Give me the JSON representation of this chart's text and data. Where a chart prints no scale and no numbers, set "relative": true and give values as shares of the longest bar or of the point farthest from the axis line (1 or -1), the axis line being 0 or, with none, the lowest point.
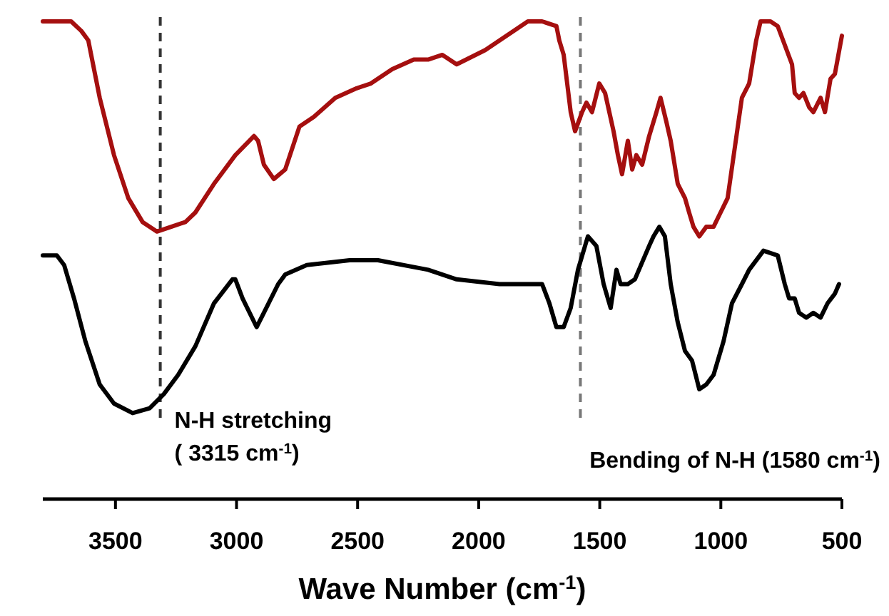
{
  "chart_data": {
    "type": "line",
    "relative": true,
    "xlabel": "Wave Number (cm$^{-1}$)",
    "xlim": [
      3800,
      500
    ],
    "xticks": [
      3500,
      3000,
      2500,
      2000,
      1500,
      1000,
      500
    ],
    "line_style": "solid",
    "series": [
      {
        "color": "#a50f0f",
        "x": [
          3800,
          3683,
          3641,
          3612,
          3565,
          3506,
          3447,
          3388,
          3329,
          3270,
          3211,
          3170,
          3093,
          3005,
          2928,
          2911,
          2887,
          2846,
          2799,
          2740,
          2681,
          2592,
          2504,
          2445,
          2357,
          2268,
          2209,
          2150,
          2091,
          1973,
          1856,
          1797,
          1738,
          1679,
          1667,
          1649,
          1620,
          1602,
          1573,
          1555,
          1532,
          1502,
          1478,
          1443,
          1425,
          1408,
          1384,
          1366,
          1349,
          1325,
          1296,
          1266,
          1249,
          1225,
          1207,
          1178,
          1148,
          1131,
          1113,
          1089,
          1060,
          1030,
          1001,
          972,
          913,
          883,
          854,
          836,
          795,
          765,
          706,
          695,
          677,
          659,
          635,
          618,
          588,
          570,
          547,
          529,
          500
        ],
        "values": [
          1,
          1,
          0.98,
          0.96,
          0.84,
          0.72,
          0.63,
          0.58,
          0.56,
          0.57,
          0.58,
          0.6,
          0.66,
          0.72,
          0.76,
          0.75,
          0.7,
          0.67,
          0.69,
          0.78,
          0.8,
          0.84,
          0.86,
          0.87,
          0.9,
          0.92,
          0.92,
          0.93,
          0.91,
          0.94,
          0.98,
          1,
          1,
          0.99,
          0.96,
          0.93,
          0.81,
          0.77,
          0.81,
          0.83,
          0.81,
          0.87,
          0.85,
          0.77,
          0.72,
          0.68,
          0.75,
          0.69,
          0.72,
          0.7,
          0.76,
          0.81,
          0.84,
          0.79,
          0.75,
          0.66,
          0.63,
          0.6,
          0.57,
          0.55,
          0.57,
          0.57,
          0.6,
          0.63,
          0.84,
          0.87,
          0.96,
          1,
          1,
          0.99,
          0.91,
          0.85,
          0.84,
          0.85,
          0.82,
          0.81,
          0.84,
          0.81,
          0.88,
          0.89,
          0.97
        ]
      },
      {
        "color": "#000000",
        "x": [
          3800,
          3742,
          3712,
          3671,
          3624,
          3565,
          3506,
          3429,
          3359,
          3300,
          3241,
          3170,
          3093,
          3017,
          3005,
          2975,
          2917,
          2887,
          2828,
          2799,
          2710,
          2533,
          2416,
          2209,
          2091,
          1914,
          1767,
          1738,
          1708,
          1679,
          1649,
          1620,
          1590,
          1549,
          1514,
          1484,
          1455,
          1431,
          1414,
          1384,
          1355,
          1313,
          1296,
          1278,
          1254,
          1231,
          1207,
          1178,
          1148,
          1119,
          1089,
          1060,
          1030,
          989,
          954,
          913,
          883,
          824,
          765,
          736,
          718,
          695,
          677,
          647,
          618,
          588,
          559,
          529,
          512
        ],
        "values": [
          0.51,
          0.51,
          0.49,
          0.42,
          0.33,
          0.24,
          0.2,
          0.18,
          0.19,
          0.22,
          0.26,
          0.32,
          0.41,
          0.46,
          0.46,
          0.42,
          0.36,
          0.39,
          0.45,
          0.47,
          0.49,
          0.5,
          0.5,
          0.48,
          0.46,
          0.45,
          0.45,
          0.45,
          0.41,
          0.36,
          0.36,
          0.4,
          0.48,
          0.55,
          0.53,
          0.45,
          0.4,
          0.48,
          0.45,
          0.45,
          0.46,
          0.51,
          0.53,
          0.55,
          0.57,
          0.55,
          0.45,
          0.37,
          0.31,
          0.29,
          0.23,
          0.24,
          0.26,
          0.33,
          0.41,
          0.45,
          0.48,
          0.52,
          0.51,
          0.45,
          0.42,
          0.42,
          0.39,
          0.38,
          0.39,
          0.38,
          0.41,
          0.43,
          0.45
        ]
      }
    ],
    "ref_lines": [
      {
        "axis": "x",
        "value": 3315,
        "label": "N-H stretching\n( 3315 cm$^{-1}$)",
        "color": "#333333",
        "line_style": "dashed"
      },
      {
        "axis": "x",
        "value": 1580,
        "label": "Bending of N-H (1580 cm$^{-1}$)",
        "color": "#777777",
        "line_style": "dashed"
      }
    ]
  }
}
